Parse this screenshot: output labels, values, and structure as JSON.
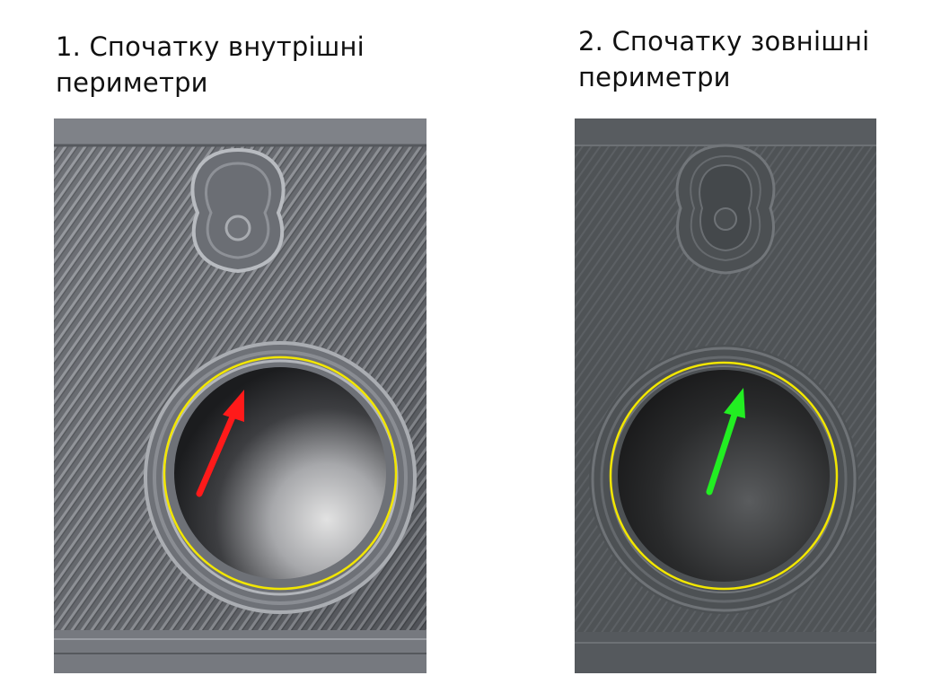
{
  "panels": [
    {
      "caption_line1": "1. Спочатку внутрішні",
      "caption_line2": "периметри",
      "arrow_color": "#ff1a1a",
      "ring_color": "#f2e600"
    },
    {
      "caption_line1": "2. Спочатку зовнішні",
      "caption_line2": "периметри",
      "arrow_color": "#22ee22",
      "ring_color": "#f2e600"
    }
  ]
}
